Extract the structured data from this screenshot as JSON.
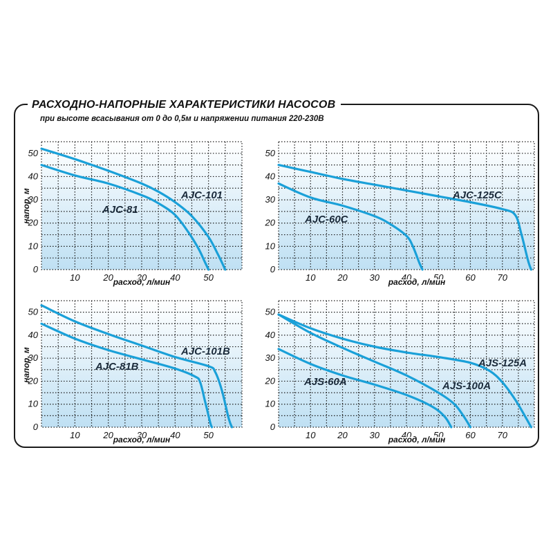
{
  "header": {
    "title": "РАСХОДНО-НАПОРНЫЕ ХАРАКТЕРИСТИКИ НАСОСОВ",
    "subtitle": "при высоте всасывания от 0 до 0,5м и напряжении питания 220-230В"
  },
  "colors": {
    "curve": "#1aa0d8",
    "grid": "#1a1a1a",
    "panel_bg_from": "#ffffff",
    "panel_bg_to": "#bfe0f3"
  },
  "chart_data": [
    {
      "type": "line",
      "xlabel": "расход, л/мин",
      "ylabel": "напор, м",
      "xlim": [
        0,
        60
      ],
      "ylim": [
        0,
        55
      ],
      "xticks": [
        10,
        20,
        30,
        40,
        50
      ],
      "yticks": [
        0,
        10,
        20,
        30,
        40,
        50
      ],
      "series": [
        {
          "name": "AJC-101",
          "x": [
            0,
            10,
            20,
            30,
            35,
            40,
            45,
            50,
            53,
            55
          ],
          "y": [
            52,
            47.5,
            42.5,
            37,
            33.5,
            29,
            23,
            14,
            6,
            0
          ]
        },
        {
          "name": "AJC-81",
          "x": [
            0,
            10,
            20,
            30,
            35,
            40,
            44,
            47,
            49,
            50
          ],
          "y": [
            45,
            40.5,
            37,
            32,
            28.5,
            23.5,
            16,
            9,
            3,
            0
          ]
        }
      ]
    },
    {
      "type": "line",
      "xlabel": "расход, л/мин",
      "ylabel": "напор, м",
      "xlim": [
        0,
        80
      ],
      "ylim": [
        0,
        55
      ],
      "xticks": [
        10,
        20,
        30,
        40,
        50,
        60,
        70
      ],
      "yticks": [
        0,
        10,
        20,
        30,
        40,
        50
      ],
      "series": [
        {
          "name": "AJC-125C",
          "x": [
            0,
            10,
            20,
            30,
            40,
            50,
            60,
            70,
            74,
            76,
            78,
            79
          ],
          "y": [
            45,
            42,
            39,
            36.5,
            34,
            31.5,
            29,
            26,
            23.5,
            15,
            4,
            0
          ]
        },
        {
          "name": "AJC-60C",
          "x": [
            0,
            10,
            20,
            30,
            35,
            40,
            42,
            44,
            45
          ],
          "y": [
            37,
            31,
            27.5,
            23,
            19.5,
            14.5,
            10,
            3,
            0
          ]
        }
      ]
    },
    {
      "type": "line",
      "xlabel": "расход, л/мин",
      "ylabel": "напор, м",
      "xlim": [
        0,
        60
      ],
      "ylim": [
        0,
        55
      ],
      "xticks": [
        10,
        20,
        30,
        40,
        50
      ],
      "yticks": [
        0,
        10,
        20,
        30,
        40,
        50
      ],
      "series": [
        {
          "name": "AJC-101B",
          "x": [
            0,
            10,
            20,
            30,
            40,
            50,
            52,
            54,
            56,
            57
          ],
          "y": [
            53,
            46,
            40.5,
            35.5,
            30.5,
            26.5,
            24,
            16,
            4,
            0
          ]
        },
        {
          "name": "AJC-81B",
          "x": [
            0,
            10,
            20,
            30,
            40,
            46,
            47.5,
            49,
            50.5,
            51
          ],
          "y": [
            45,
            38.5,
            33.5,
            29.5,
            25.5,
            22,
            19.5,
            11,
            2,
            0
          ]
        }
      ]
    },
    {
      "type": "line",
      "xlabel": "расход, л/мин",
      "ylabel": "напор, м",
      "xlim": [
        0,
        80
      ],
      "ylim": [
        0,
        55
      ],
      "xticks": [
        10,
        20,
        30,
        40,
        50,
        60,
        70
      ],
      "yticks": [
        0,
        10,
        20,
        30,
        40,
        50
      ],
      "series": [
        {
          "name": "AJS-125A",
          "x": [
            0,
            10,
            20,
            30,
            40,
            50,
            60,
            66,
            70,
            74,
            77,
            79
          ],
          "y": [
            49,
            43,
            38.5,
            35,
            32.5,
            30.5,
            28,
            24.5,
            19.5,
            12,
            5,
            0
          ]
        },
        {
          "name": "AJS-100A",
          "x": [
            0,
            10,
            20,
            30,
            40,
            50,
            55,
            58,
            60
          ],
          "y": [
            49,
            41,
            34.5,
            28.5,
            22.5,
            15,
            10,
            4.5,
            0
          ]
        },
        {
          "name": "AJS-60A",
          "x": [
            0,
            10,
            20,
            30,
            40,
            48,
            52,
            54
          ],
          "y": [
            34,
            27.5,
            22.5,
            18.5,
            14,
            9,
            4.5,
            0
          ]
        }
      ]
    }
  ]
}
